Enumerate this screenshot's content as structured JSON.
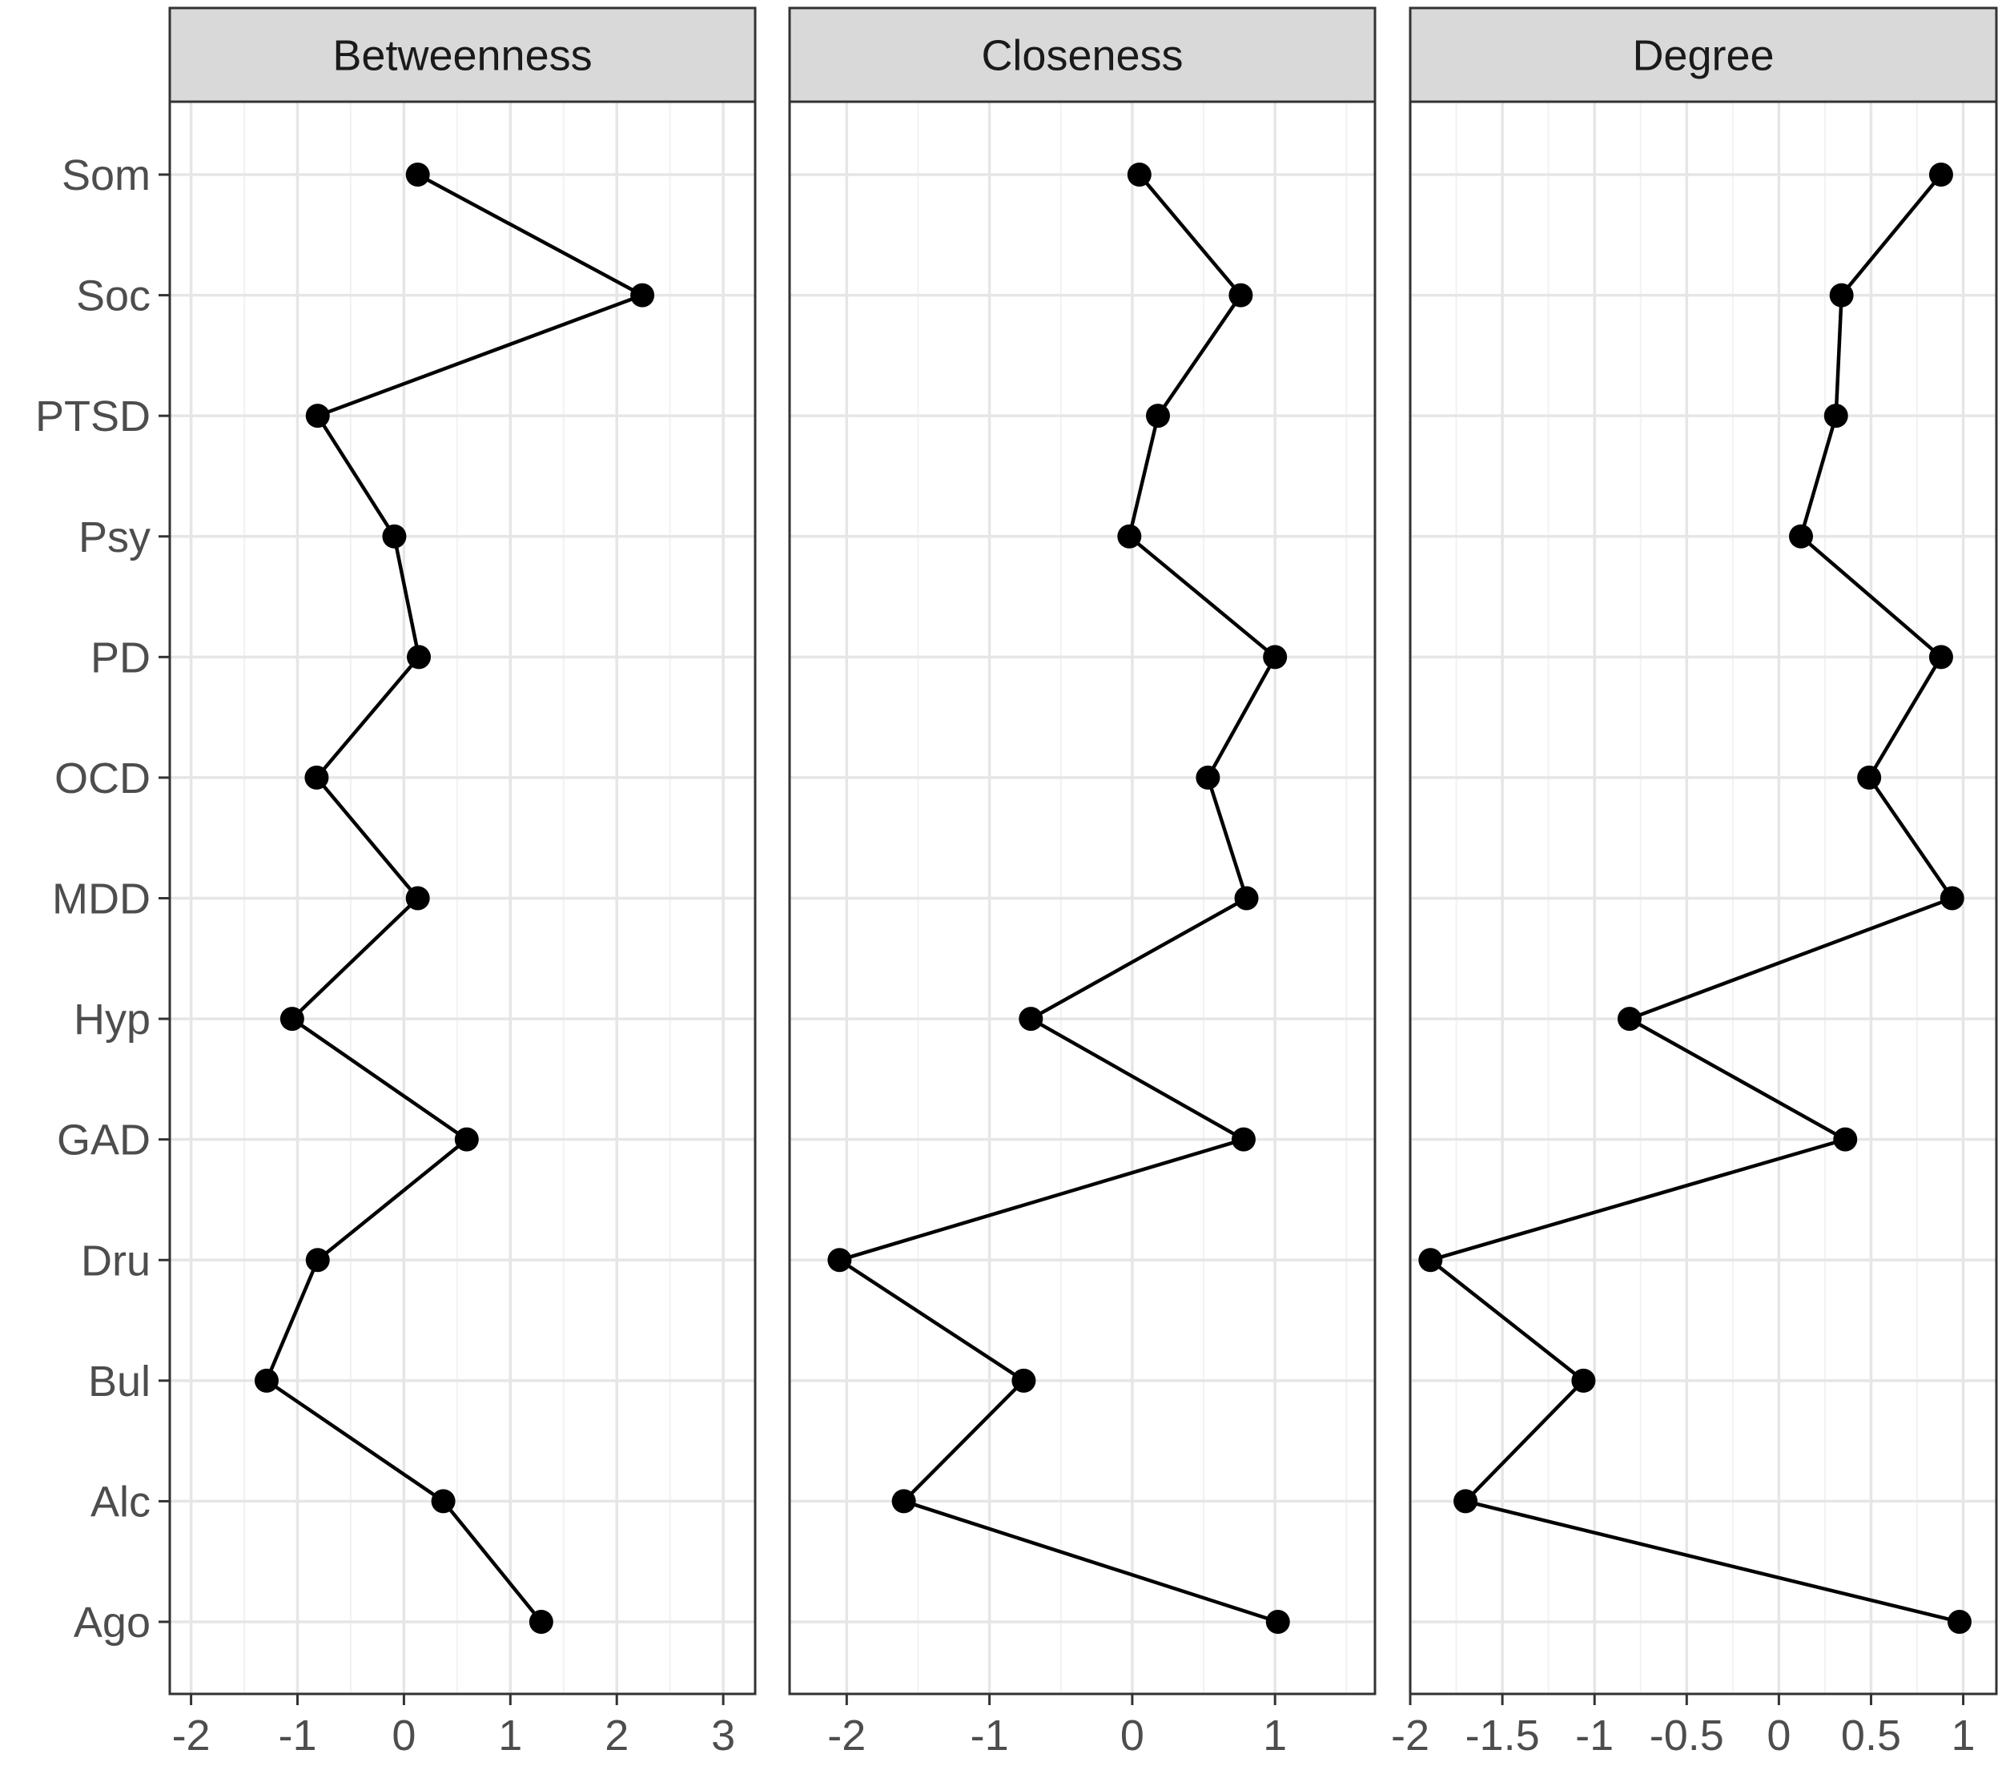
{
  "chart_data": {
    "type": "line",
    "layout": "faceted",
    "categories": [
      "Ago",
      "Alc",
      "Bul",
      "Dru",
      "GAD",
      "Hyp",
      "MDD",
      "OCD",
      "PD",
      "Psy",
      "PTSD",
      "Soc",
      "Som"
    ],
    "grid": true,
    "colors": {
      "line": "#000000",
      "point": "#000000",
      "strip_fill": "#d9d9d9",
      "grid_major": "#e6e6e6",
      "grid_minor": "#f2f2f2",
      "border": "#333333",
      "tick_text": "#4d4d4d"
    },
    "panels": [
      {
        "title": "Betweenness",
        "xlim": [
          -2.2,
          3.3
        ],
        "ticks": [
          -2,
          -1,
          0,
          1,
          2,
          3
        ],
        "tick_labels": [
          "-2",
          "-1",
          "0",
          "1",
          "2",
          "3"
        ],
        "values": [
          1.29,
          0.37,
          -1.29,
          -0.81,
          0.59,
          -1.05,
          0.13,
          -0.82,
          0.14,
          -0.09,
          -0.81,
          2.24,
          0.13
        ]
      },
      {
        "title": "Closeness",
        "xlim": [
          -2.4,
          1.7
        ],
        "ticks": [
          -2,
          -1,
          0,
          1
        ],
        "tick_labels": [
          "-2",
          "-1",
          "0",
          "1"
        ],
        "values": [
          1.02,
          -1.6,
          -0.76,
          -2.05,
          0.78,
          -0.71,
          0.8,
          0.53,
          1.0,
          -0.02,
          0.18,
          0.76,
          0.05
        ]
      },
      {
        "title": "Degree",
        "xlim": [
          -2.0,
          1.18
        ],
        "ticks": [
          -2,
          -1.5,
          -1,
          -0.5,
          0,
          0.5,
          1
        ],
        "tick_labels": [
          "-2",
          "-1.5",
          "-1",
          "-0.5",
          "0",
          "0.5",
          "1"
        ],
        "values": [
          0.98,
          -1.7,
          -1.06,
          -1.89,
          0.36,
          -0.81,
          0.94,
          0.49,
          0.88,
          0.12,
          0.31,
          0.34,
          0.88
        ]
      }
    ]
  }
}
